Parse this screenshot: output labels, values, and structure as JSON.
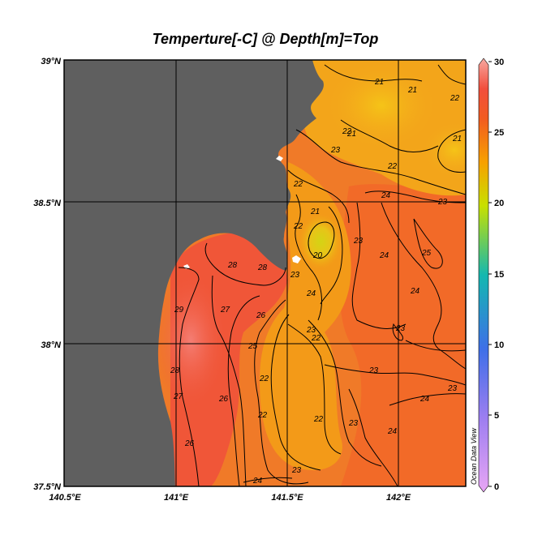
{
  "title": "Temperture[-C] @ Depth[m]=Top",
  "watermark": "Ocean Data View",
  "lon_ticks": [
    "140.5°E",
    "141°E",
    "141.5°E",
    "142°E"
  ],
  "lat_ticks": [
    "39°N",
    "38.5°N",
    "38°N",
    "37.5°N"
  ],
  "colorbar": {
    "min": 0,
    "max": 30,
    "ticks": [
      "30",
      "25",
      "20",
      "15",
      "10",
      "5",
      "0"
    ]
  },
  "extent": {
    "lon_min": 140.5,
    "lon_max": 142.3,
    "lat_min": 37.5,
    "lat_max": 39.0
  },
  "land_color": "#5f5f5f",
  "isotherm_labels": [
    "21",
    "21",
    "22",
    "21",
    "22",
    "22",
    "23",
    "22",
    "24",
    "23",
    "21",
    "22",
    "21",
    "23",
    "20",
    "25",
    "28",
    "28",
    "24",
    "23",
    "24",
    "29",
    "27",
    "26",
    "24",
    "23",
    "23",
    "22",
    "28",
    "25",
    "23",
    "22",
    "23",
    "27",
    "26",
    "22",
    "23",
    "24",
    "26",
    "22",
    "24",
    "23",
    "24"
  ]
}
